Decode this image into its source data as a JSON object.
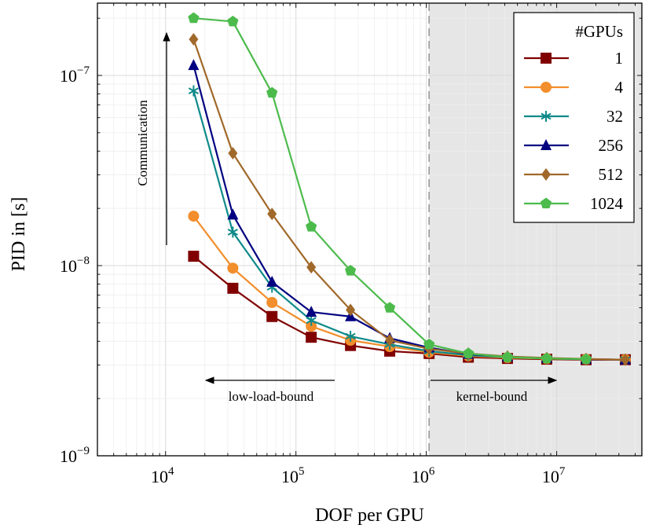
{
  "chart_data": {
    "type": "line",
    "x_scale": "log",
    "y_scale": "log",
    "xlabel": "DOF per GPU",
    "ylabel": "PID in [s]",
    "xlim": [
      3000,
      45000000
    ],
    "ylim": [
      1e-09,
      2.4e-07
    ],
    "grid": true,
    "legend_title": "#GPUs",
    "legend_position": "top-right",
    "shaded_region": {
      "x_from": 1050000,
      "color": "#e6e6e6"
    },
    "threshold_line_x": 1050000,
    "x_ticks": [
      {
        "value": 10000,
        "base": "10",
        "exp": "4"
      },
      {
        "value": 100000,
        "base": "10",
        "exp": "5"
      },
      {
        "value": 1000000,
        "base": "10",
        "exp": "6"
      },
      {
        "value": 10000000,
        "base": "10",
        "exp": "7"
      }
    ],
    "y_ticks": [
      {
        "value": 1e-09,
        "base": "10",
        "exp": "−9"
      },
      {
        "value": 1e-08,
        "base": "10",
        "exp": "−8"
      },
      {
        "value": 1e-07,
        "base": "10",
        "exp": "−7"
      }
    ],
    "annotations": {
      "communication": "Communication",
      "low_load": "low-load-bound",
      "kernel": "kernel-bound"
    },
    "series": [
      {
        "name": "1",
        "color": "#800000",
        "marker": "square",
        "x": [
          16400,
          32800,
          65500,
          131000,
          262000,
          524000,
          1050000,
          2100000,
          4190000,
          8390000,
          16800000,
          33600000
        ],
        "y": [
          1.12e-08,
          7.6e-09,
          5.4e-09,
          4.2e-09,
          3.8e-09,
          3.55e-09,
          3.45e-09,
          3.3e-09,
          3.25e-09,
          3.22e-09,
          3.2e-09,
          3.2e-09
        ]
      },
      {
        "name": "4",
        "color": "#f28e2b",
        "marker": "circle",
        "x": [
          16400,
          32800,
          65500,
          131000,
          262000,
          524000,
          1050000,
          2100000,
          4190000,
          8390000,
          16800000,
          33600000
        ],
        "y": [
          1.82e-08,
          9.7e-09,
          6.4e-09,
          4.8e-09,
          4.05e-09,
          3.75e-09,
          3.5e-09,
          3.35e-09,
          3.28e-09,
          3.24e-09,
          3.22e-09,
          3.2e-09
        ]
      },
      {
        "name": "32",
        "color": "#0f8a8a",
        "marker": "asterisk",
        "x": [
          16400,
          32800,
          65500,
          131000,
          262000,
          524000,
          1050000,
          2100000,
          4190000,
          8390000,
          16800000,
          33600000
        ],
        "y": [
          8.3e-08,
          1.5e-08,
          7.7e-09,
          5.15e-09,
          4.25e-09,
          3.85e-09,
          3.55e-09,
          3.38e-09,
          3.3e-09,
          3.25e-09,
          3.22e-09,
          3.2e-09
        ]
      },
      {
        "name": "256",
        "color": "#000080",
        "marker": "triangle",
        "x": [
          16400,
          32800,
          65500,
          131000,
          262000,
          524000,
          1050000,
          2100000,
          4190000,
          8390000,
          16800000,
          33600000
        ],
        "y": [
          1.13e-07,
          1.85e-08,
          8.2e-09,
          5.7e-09,
          5.4e-09,
          4.15e-09,
          3.7e-09,
          3.42e-09,
          3.32e-09,
          3.26e-09,
          3.22e-09,
          3.2e-09
        ]
      },
      {
        "name": "512",
        "color": "#a0692a",
        "marker": "diamond",
        "x": [
          16400,
          32800,
          65500,
          131000,
          262000,
          524000,
          1050000,
          2100000,
          4190000,
          8390000,
          16800000,
          33600000
        ],
        "y": [
          1.55e-07,
          3.9e-08,
          1.87e-08,
          9.8e-09,
          5.85e-09,
          4.05e-09,
          3.65e-09,
          3.45e-09,
          3.33e-09,
          3.27e-09,
          3.23e-09,
          3.2e-09
        ]
      },
      {
        "name": "1024",
        "color": "#4cbb4c",
        "marker": "pentagon",
        "x": [
          16400,
          32800,
          65500,
          131000,
          262000,
          524000,
          1050000,
          2100000,
          4190000,
          8390000,
          16800000
        ],
        "y": [
          2e-07,
          1.92e-07,
          8.1e-08,
          1.6e-08,
          9.4e-09,
          6e-09,
          3.85e-09,
          3.45e-09,
          3.3e-09,
          3.25e-09,
          3.22e-09
        ]
      }
    ]
  }
}
